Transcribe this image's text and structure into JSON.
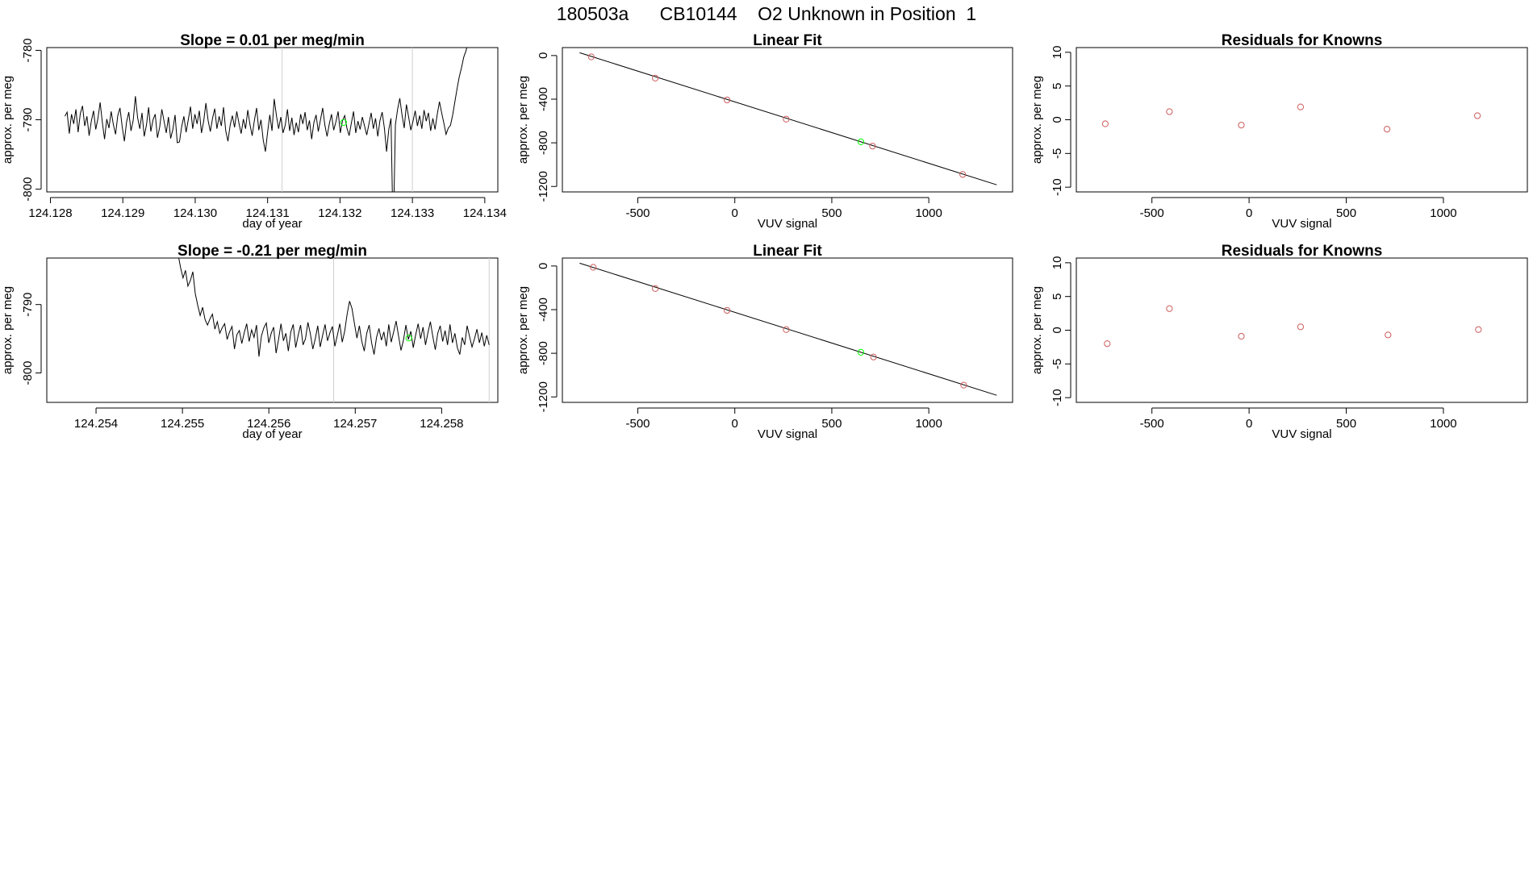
{
  "figure": {
    "title": "180503a      CB10144    O2 Unknown in Position  1"
  },
  "colors": {
    "known_point": "#cd5c5c",
    "unknown_point": "#00ff00",
    "line": "#000000",
    "marker_line": "#cfcfcf"
  },
  "chart_data": [
    {
      "id": "ts1",
      "type": "line",
      "title": "Slope =  0.01  per meg/min",
      "xlabel": "day of year",
      "ylabel": "approx. per meg",
      "xlim": [
        124.12795,
        124.13418
      ],
      "ylim": [
        -800.4,
        -779.6
      ],
      "xticks": [
        124.128,
        124.129,
        124.13,
        124.131,
        124.132,
        124.133,
        124.134
      ],
      "xtick_labels": [
        "124.128",
        "124.129",
        "124.130",
        "124.131",
        "124.132",
        "124.133",
        "124.134"
      ],
      "yticks": [
        -800,
        -790,
        -780
      ],
      "ytick_labels": [
        "-800",
        "-790",
        "-780"
      ],
      "vlines": [
        124.1312,
        124.133
      ],
      "series": [
        {
          "x_start": 124.1282,
          "x_end": 124.1338,
          "values": [
            -789.5,
            -788.9,
            -792.0,
            -789.2,
            -790.6,
            -788.5,
            -791.8,
            -789.1,
            -788.0,
            -790.9,
            -789.5,
            -792.3,
            -790.2,
            -788.7,
            -791.4,
            -789.8,
            -787.5,
            -790.4,
            -792.8,
            -789.9,
            -791.2,
            -788.8,
            -790.7,
            -792.1,
            -789.4,
            -788.3,
            -791.0,
            -793.1,
            -790.3,
            -788.9,
            -791.6,
            -790.1,
            -786.6,
            -789.7,
            -791.3,
            -789.0,
            -792.4,
            -790.8,
            -788.2,
            -791.7,
            -790.0,
            -789.2,
            -792.6,
            -791.1,
            -788.5,
            -790.2,
            -791.9,
            -789.6,
            -792.7,
            -791.4,
            -789.3,
            -793.3,
            -793.2,
            -791.0,
            -789.5,
            -791.8,
            -790.0,
            -788.1,
            -791.3,
            -789.2,
            -790.6,
            -788.7,
            -791.9,
            -790.2,
            -787.6,
            -790.1,
            -791.7,
            -789.8,
            -788.4,
            -791.3,
            -789.5,
            -790.9,
            -788.2,
            -791.6,
            -793.1,
            -790.8,
            -789.4,
            -791.1,
            -788.8,
            -790.5,
            -792.0,
            -789.9,
            -791.3,
            -788.6,
            -790.7,
            -792.3,
            -790.1,
            -788.3,
            -791.5,
            -790.0,
            -792.9,
            -794.6,
            -791.8,
            -789.3,
            -791.6,
            -787.0,
            -789.4,
            -791.3,
            -789.6,
            -791.9,
            -790.8,
            -788.5,
            -791.6,
            -789.7,
            -792.2,
            -790.4,
            -791.8,
            -789.2,
            -790.6,
            -788.9,
            -791.5,
            -790.1,
            -792.8,
            -790.4,
            -789.3,
            -791.7,
            -790.0,
            -788.3,
            -790.8,
            -792.4,
            -790.6,
            -789.2,
            -791.5,
            -790.3,
            -788.8,
            -791.9,
            -790.1,
            -789.4,
            -791.2,
            -792.3,
            -790.5,
            -788.8,
            -791.9,
            -790.2,
            -791.4,
            -789.6,
            -790.9,
            -792.2,
            -790.6,
            -789.0,
            -791.3,
            -789.8,
            -792.4,
            -790.1,
            -788.9,
            -791.2,
            -794.6,
            -791.4,
            -789.8,
            -807.3,
            -790.7,
            -788.5,
            -786.9,
            -789.3,
            -791.2,
            -787.8,
            -789.6,
            -791.5,
            -790.2,
            -788.7,
            -790.9,
            -789.4,
            -791.3,
            -788.6,
            -790.2,
            -789.0,
            -791.6,
            -789.8,
            -791.4,
            -789.2,
            -787.4,
            -789.0,
            -790.5,
            -792.1,
            -791.2,
            -790.8,
            -789.3,
            -787.4,
            -785.5,
            -783.8,
            -782.5,
            -781.0,
            -780.1,
            -778.9,
            -776.5
          ]
        }
      ],
      "points": [
        {
          "x": 124.13205,
          "y": -790.4,
          "kind": "unknown"
        }
      ]
    },
    {
      "id": "fit1",
      "type": "scatter",
      "title": "Linear Fit",
      "xlabel": "VUV signal",
      "ylabel": "approx. per meg",
      "xlim": [
        -889,
        1432
      ],
      "ylim": [
        -1250,
        73
      ],
      "xticks": [
        -500,
        0,
        500,
        1000
      ],
      "xtick_labels": [
        "-500",
        "0",
        "500",
        "1000"
      ],
      "yticks": [
        -1200,
        -800,
        -400,
        0
      ],
      "ytick_labels": [
        "-1200",
        "-800",
        "-400",
        "0"
      ],
      "fit_line": {
        "x": [
          -800,
          1350
        ],
        "y": [
          26,
          -1185
        ]
      },
      "points": [
        {
          "x": -740,
          "y": -12,
          "kind": "known"
        },
        {
          "x": -410,
          "y": -207,
          "kind": "known"
        },
        {
          "x": -40,
          "y": -407,
          "kind": "known"
        },
        {
          "x": 265,
          "y": -583,
          "kind": "known"
        },
        {
          "x": 650,
          "y": -791,
          "kind": "unknown"
        },
        {
          "x": 710,
          "y": -830,
          "kind": "known"
        },
        {
          "x": 1175,
          "y": -1090,
          "kind": "known"
        }
      ]
    },
    {
      "id": "res1",
      "type": "scatter",
      "title": "Residuals for Knowns",
      "xlabel": "VUV signal",
      "ylabel": "approx. per meg",
      "xlim": [
        -889,
        1432
      ],
      "ylim": [
        -10.7,
        10.7
      ],
      "xticks": [
        -500,
        0,
        500,
        1000
      ],
      "xtick_labels": [
        "-500",
        "0",
        "500",
        "1000"
      ],
      "yticks": [
        -10,
        -5,
        0,
        5,
        10
      ],
      "ytick_labels": [
        "-10",
        "-5",
        "0",
        "5",
        "10"
      ],
      "points": [
        {
          "x": -740,
          "y": -0.6,
          "kind": "known"
        },
        {
          "x": -410,
          "y": 1.2,
          "kind": "known"
        },
        {
          "x": -40,
          "y": -0.8,
          "kind": "known"
        },
        {
          "x": 265,
          "y": 1.9,
          "kind": "known"
        },
        {
          "x": 710,
          "y": -1.4,
          "kind": "known"
        },
        {
          "x": 1175,
          "y": 0.6,
          "kind": "known"
        }
      ]
    },
    {
      "id": "ts2",
      "type": "line",
      "title": "Slope =  -0.21  per meg/min",
      "xlabel": "day of year",
      "ylabel": "approx. per meg",
      "xlim": [
        124.25343,
        124.25865
      ],
      "ylim": [
        -804.3,
        -783.2
      ],
      "xticks": [
        124.254,
        124.255,
        124.256,
        124.257,
        124.258
      ],
      "xtick_labels": [
        "124.254",
        "124.255",
        "124.256",
        "124.257",
        "124.258"
      ],
      "yticks": [
        -800,
        -790
      ],
      "ytick_labels": [
        "-800",
        "-790"
      ],
      "vlines": [
        124.25675,
        124.25855
      ],
      "series": [
        {
          "x_start": 124.25495,
          "x_end": 124.25855,
          "values": [
            -782.7,
            -784.6,
            -786.1,
            -785.0,
            -787.3,
            -786.5,
            -785.2,
            -788.4,
            -790.1,
            -791.6,
            -790.4,
            -792.2,
            -793.0,
            -792.1,
            -791.4,
            -793.6,
            -792.5,
            -794.2,
            -793.4,
            -792.8,
            -795.1,
            -794.0,
            -793.2,
            -796.5,
            -794.4,
            -793.8,
            -795.7,
            -794.1,
            -792.8,
            -795.4,
            -793.7,
            -794.8,
            -793.0,
            -797.6,
            -794.6,
            -793.4,
            -792.7,
            -795.6,
            -794.2,
            -793.3,
            -797.1,
            -795.1,
            -792.8,
            -795.3,
            -794.2,
            -796.8,
            -794.0,
            -792.9,
            -796.3,
            -794.5,
            -793.0,
            -795.9,
            -795.0,
            -792.6,
            -794.3,
            -796.5,
            -795.0,
            -793.1,
            -796.2,
            -794.5,
            -792.9,
            -795.3,
            -794.1,
            -793.2,
            -796.1,
            -794.5,
            -792.8,
            -795.5,
            -793.9,
            -791.4,
            -789.5,
            -790.6,
            -792.8,
            -794.9,
            -793.1,
            -795.4,
            -796.8,
            -794.2,
            -793.0,
            -795.6,
            -797.3,
            -794.8,
            -793.5,
            -795.2,
            -794.0,
            -796.1,
            -792.9,
            -795.5,
            -794.0,
            -792.4,
            -794.6,
            -796.7,
            -795.2,
            -793.0,
            -795.1,
            -793.9,
            -796.3,
            -794.4,
            -792.8,
            -795.0,
            -793.3,
            -795.9,
            -794.1,
            -792.5,
            -794.7,
            -796.6,
            -794.2,
            -793.1,
            -795.4,
            -793.8,
            -795.9,
            -792.9,
            -795.6,
            -794.2,
            -796.3,
            -797.3,
            -794.8,
            -795.9,
            -793.1,
            -794.7,
            -796.2,
            -795.0,
            -793.6,
            -795.6,
            -794.1,
            -796.1,
            -794.5,
            -795.9
          ]
        }
      ],
      "points": [
        {
          "x": 124.25762,
          "y": -794.9,
          "kind": "unknown"
        }
      ]
    },
    {
      "id": "fit2",
      "type": "scatter",
      "title": "Linear Fit",
      "xlabel": "VUV signal",
      "ylabel": "approx. per meg",
      "xlim": [
        -889,
        1432
      ],
      "ylim": [
        -1250,
        73
      ],
      "xticks": [
        -500,
        0,
        500,
        1000
      ],
      "xtick_labels": [
        "-500",
        "0",
        "500",
        "1000"
      ],
      "yticks": [
        -1200,
        -800,
        -400,
        0
      ],
      "ytick_labels": [
        "-1200",
        "-800",
        "-400",
        "0"
      ],
      "fit_line": {
        "x": [
          -800,
          1350
        ],
        "y": [
          26,
          -1185
        ]
      },
      "points": [
        {
          "x": -730,
          "y": -12,
          "kind": "known"
        },
        {
          "x": -410,
          "y": -207,
          "kind": "known"
        },
        {
          "x": -40,
          "y": -407,
          "kind": "known"
        },
        {
          "x": 265,
          "y": -583,
          "kind": "known"
        },
        {
          "x": 650,
          "y": -791,
          "kind": "unknown"
        },
        {
          "x": 715,
          "y": -834,
          "kind": "known"
        },
        {
          "x": 1180,
          "y": -1092,
          "kind": "known"
        }
      ]
    },
    {
      "id": "res2",
      "type": "scatter",
      "title": "Residuals for Knowns",
      "xlabel": "VUV signal",
      "ylabel": "approx. per meg",
      "xlim": [
        -889,
        1432
      ],
      "ylim": [
        -10.7,
        10.7
      ],
      "xticks": [
        -500,
        0,
        500,
        1000
      ],
      "xtick_labels": [
        "-500",
        "0",
        "500",
        "1000"
      ],
      "yticks": [
        -10,
        -5,
        0,
        5,
        10
      ],
      "ytick_labels": [
        "-10",
        "-5",
        "0",
        "5",
        "10"
      ],
      "points": [
        {
          "x": -730,
          "y": -2.0,
          "kind": "known"
        },
        {
          "x": -410,
          "y": 3.2,
          "kind": "known"
        },
        {
          "x": -40,
          "y": -0.9,
          "kind": "known"
        },
        {
          "x": 265,
          "y": 0.5,
          "kind": "known"
        },
        {
          "x": 715,
          "y": -0.7,
          "kind": "known"
        },
        {
          "x": 1180,
          "y": 0.1,
          "kind": "known"
        }
      ]
    }
  ]
}
